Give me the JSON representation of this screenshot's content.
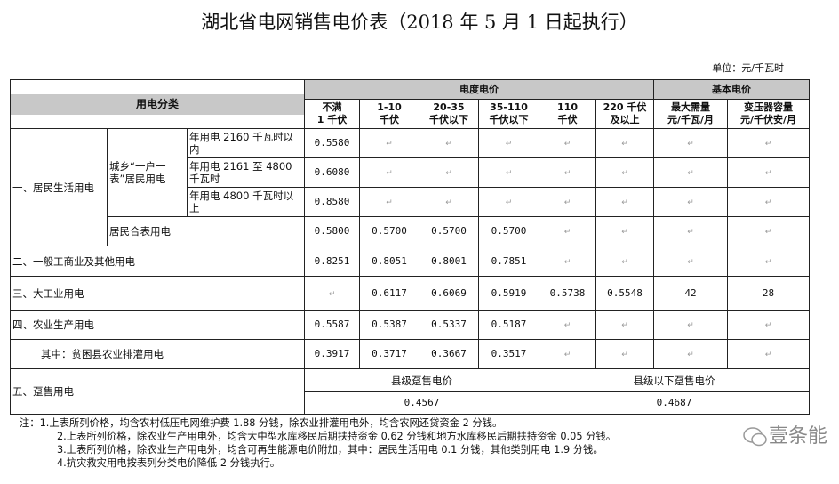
{
  "title": "湖北省电网销售电价表（2018 年 5 月 1 日起执行）",
  "unit": "单位：元/千瓦时",
  "header": {
    "category": "用电分类",
    "energy_price": "电度电价",
    "basic_price": "基本电价",
    "columns": [
      "不满\n1 千伏",
      "1-10\n千伏",
      "20-35\n千伏以下",
      "35-110\n千伏以下",
      "110\n千伏",
      "220 千伏\n及以上",
      "最大需量\n元/千瓦/月",
      "变压器容量\n元/千伏安/月"
    ]
  },
  "residential": {
    "label": "一、居民生活用电",
    "sub": "城乡“一户一表”居民用电",
    "tiers": [
      {
        "label": "年用电 2160 千瓦时以内",
        "price": "0.5580"
      },
      {
        "label": "年用电 2161 至 4800 千瓦时",
        "price": "0.6080"
      },
      {
        "label": "年用电 4800 千瓦时以上",
        "price": "0.8580"
      }
    ],
    "shared": {
      "label": "居民合表用电",
      "values": [
        "0.5800",
        "0.5700",
        "0.5700",
        "0.5700",
        "",
        "",
        "",
        ""
      ]
    }
  },
  "rows": [
    {
      "label": "二、一般工商业及其他用电",
      "values": [
        "0.8251",
        "0.8051",
        "0.8001",
        "0.7851",
        "",
        "",
        "",
        ""
      ]
    },
    {
      "label": "三、大工业用电",
      "values": [
        "",
        "0.6117",
        "0.6069",
        "0.5919",
        "0.5738",
        "0.5548",
        "42",
        "28"
      ]
    },
    {
      "label": "四、农业生产用电",
      "values": [
        "0.5587",
        "0.5387",
        "0.5337",
        "0.5187",
        "",
        "",
        "",
        ""
      ]
    },
    {
      "label": "其中：贫困县农业排灌用电",
      "values": [
        "0.3917",
        "0.3717",
        "0.3667",
        "0.3517",
        "",
        "",
        "",
        ""
      ]
    }
  ],
  "wholesale": {
    "label": "五、趸售用电",
    "county_label": "县级趸售电价",
    "county_value": "0.4567",
    "below_label": "县级以下趸售电价",
    "below_value": "0.4687"
  },
  "notes": [
    "注：1.上表所列价格，均含农村低压电网维护费 1.88 分钱，除农业排灌用电外，均含农网还贷资金 2 分钱。",
    "2.上表所列价格，除农业生产用电外，均含大中型水库移民后期扶持资金 0.62 分钱和地方水库移民后期扶持资金 0.05 分钱。",
    "3.上表所列价格，除农业生产用电外，均含可再生能源电价附加，其中：居民生活用电 0.1 分钱，其他类别用电 1.9 分钱。",
    "4.抗灾救灾用电按表列分类电价降低 2 分钱执行。"
  ],
  "watermark": "壹条能"
}
